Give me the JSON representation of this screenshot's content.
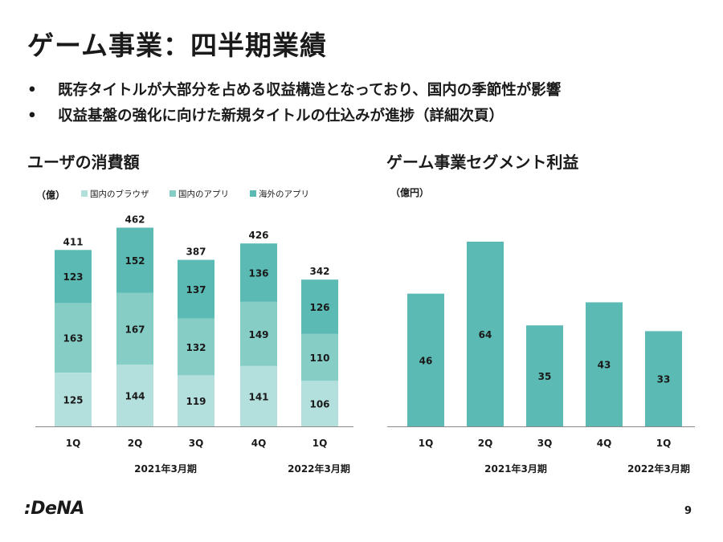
{
  "title": "ゲーム事業：四半期業績",
  "bullets": [
    "既存タイトルが大部分を占める収益構造となっており、国内の季節性が影響",
    "収益基盤の強化に向けた新規タイトルの仕込みが進捗（詳細次頁）"
  ],
  "bullet_symbol": "•",
  "logo": ":DeNA",
  "page_number": "9",
  "colors": {
    "browser": "#b3e0dc",
    "app_domestic": "#86cdc6",
    "app_overseas": "#5bbab3",
    "profit": "#5bbab3",
    "axis": "#8a8a8a"
  },
  "chart_data": [
    {
      "type": "bar",
      "stacked": true,
      "title": "ユーザの消費額",
      "unit_label": "（億）",
      "categories": [
        "1Q",
        "2Q",
        "3Q",
        "4Q",
        "1Q"
      ],
      "groups": [
        {
          "label": "2021年3月期",
          "span": [
            0,
            3
          ]
        },
        {
          "label": "2022年3月期",
          "span": [
            4,
            4
          ]
        }
      ],
      "series": [
        {
          "name": "国内のブラウザ",
          "values": [
            125,
            144,
            119,
            141,
            106
          ]
        },
        {
          "name": "国内のアプリ",
          "values": [
            163,
            167,
            132,
            149,
            110
          ]
        },
        {
          "name": "海外のアプリ",
          "values": [
            123,
            152,
            137,
            136,
            126
          ]
        }
      ],
      "totals": [
        411,
        462,
        387,
        426,
        342
      ],
      "ylim": [
        0,
        462
      ],
      "legend": "top",
      "grid": false
    },
    {
      "type": "bar",
      "title": "ゲーム事業セグメント利益",
      "unit_label": "（億円）",
      "categories": [
        "1Q",
        "2Q",
        "3Q",
        "4Q",
        "1Q"
      ],
      "groups": [
        {
          "label": "2021年3月期",
          "span": [
            0,
            3
          ]
        },
        {
          "label": "2022年3月期",
          "span": [
            4,
            4
          ]
        }
      ],
      "values": [
        46,
        64,
        35,
        43,
        33
      ],
      "ylim": [
        0,
        64
      ],
      "grid": false
    }
  ]
}
